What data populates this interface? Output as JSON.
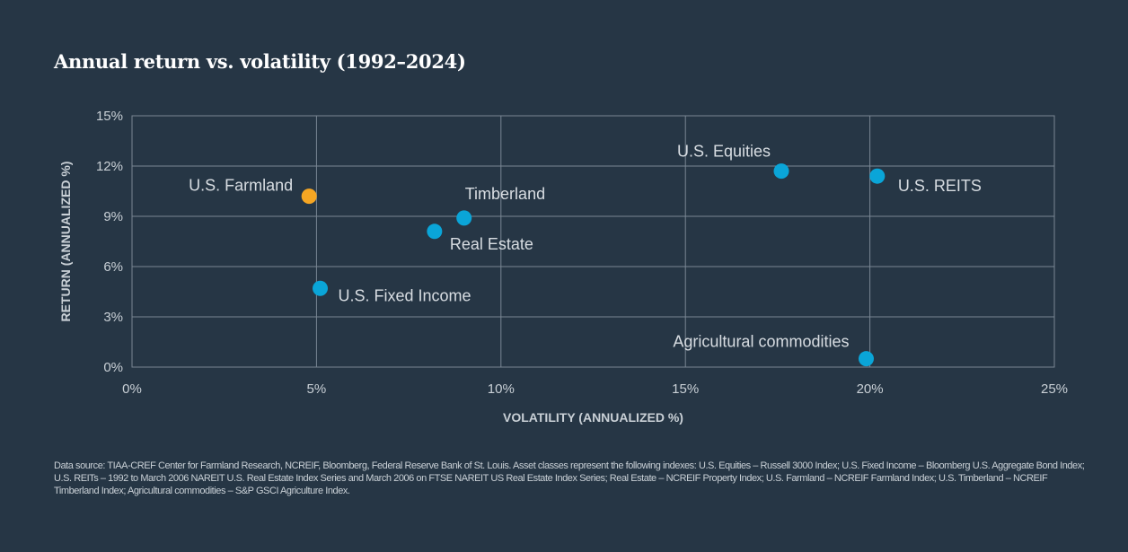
{
  "chart_data": {
    "type": "scatter",
    "title": "Annual return vs. volatility (1992–2024)",
    "xlabel": "VOLATILITY (ANNUALIZED %)",
    "ylabel": "RETURN (ANNUALIZED %)",
    "xlim": [
      0,
      25
    ],
    "ylim": [
      0,
      15
    ],
    "xticks": [
      0,
      5,
      10,
      15,
      20,
      25
    ],
    "yticks": [
      0,
      3,
      6,
      9,
      12,
      15
    ],
    "xtick_labels": [
      "0%",
      "5%",
      "10%",
      "15%",
      "20%",
      "25%"
    ],
    "ytick_labels": [
      "0%",
      "3%",
      "6%",
      "9%",
      "12%",
      "15%"
    ],
    "grid": true,
    "colors": {
      "highlight": "#f6a623",
      "default": "#0aa5d8",
      "background": "#263645"
    },
    "points": [
      {
        "label": "U.S. Farmland",
        "x": 4.8,
        "y": 10.2,
        "highlight": true
      },
      {
        "label": "Timberland",
        "x": 9.0,
        "y": 8.9,
        "highlight": false
      },
      {
        "label": "Real Estate",
        "x": 8.2,
        "y": 8.1,
        "highlight": false
      },
      {
        "label": "U.S. Fixed Income",
        "x": 5.1,
        "y": 4.7,
        "highlight": false
      },
      {
        "label": "U.S. Equities",
        "x": 17.6,
        "y": 11.7,
        "highlight": false
      },
      {
        "label": "U.S. REITS",
        "x": 20.2,
        "y": 11.4,
        "highlight": false
      },
      {
        "label": "Agricultural commodities",
        "x": 19.9,
        "y": 0.5,
        "highlight": false
      }
    ]
  },
  "footnote": "Data source: TIAA-CREF Center for Farmland Research, NCREIF, Bloomberg, Federal Reserve Bank of St. Louis. Asset classes represent the following indexes: U.S. Equities – Russell 3000 Index; U.S. Fixed Income – Bloomberg U.S. Aggregate Bond Index; U.S. REITs – 1992 to March 2006 NAREIT U.S. Real Estate Index Series and March 2006 on FTSE NAREIT US Real Estate Index Series; Real Estate – NCREIF Property Index; U.S. Farmland – NCREIF Farmland Index; U.S. Timberland – NCREIF Timberland Index; Agricultural commodities – S&P GSCI Agriculture Index."
}
